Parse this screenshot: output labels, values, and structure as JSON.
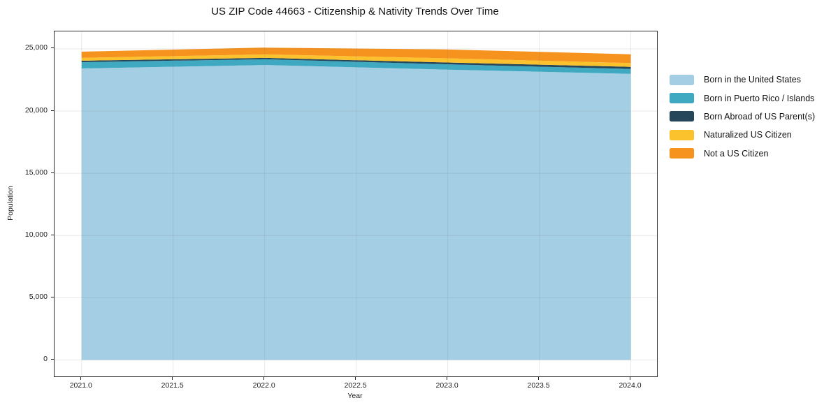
{
  "figure": {
    "title": "US ZIP Code 44663 - Citizenship & Nativity Trends Over Time"
  },
  "chart_data": {
    "type": "area",
    "stacked": true,
    "title": "US ZIP Code 44663 - Citizenship & Nativity Trends Over Time",
    "xlabel": "Year",
    "ylabel": "Population",
    "x": [
      2021,
      2022,
      2023,
      2024
    ],
    "series": [
      {
        "name": "Born in the United States",
        "color": "#a4cee3",
        "values": [
          23425,
          23700,
          23330,
          22990
        ]
      },
      {
        "name": "Born in Puerto Rico / Islands",
        "color": "#3fa9c2",
        "values": [
          505,
          465,
          425,
          395
        ]
      },
      {
        "name": "Born Abroad of US Parent(s)",
        "color": "#26475a",
        "values": [
          115,
          110,
          145,
          170
        ]
      },
      {
        "name": "Naturalized US Citizen",
        "color": "#fcc22d",
        "values": [
          230,
          280,
          340,
          305
        ]
      },
      {
        "name": "Not a US Citizen",
        "color": "#f6931e",
        "values": [
          500,
          545,
          710,
          705
        ]
      }
    ],
    "stacked_totals": [
      24775,
      25100,
      24950,
      24565
    ],
    "xlim": [
      2020.852,
      2024.143
    ],
    "ylim": [
      -1320,
      26400
    ],
    "x_ticks": [
      {
        "value": 2021.0,
        "label": "2021.0"
      },
      {
        "value": 2021.5,
        "label": "2021.5"
      },
      {
        "value": 2022.0,
        "label": "2022.0"
      },
      {
        "value": 2022.5,
        "label": "2022.5"
      },
      {
        "value": 2023.0,
        "label": "2023.0"
      },
      {
        "value": 2023.5,
        "label": "2023.5"
      },
      {
        "value": 2024.0,
        "label": "2024.0"
      }
    ],
    "y_ticks": [
      {
        "value": 0,
        "label": "0"
      },
      {
        "value": 5000,
        "label": "5,000"
      },
      {
        "value": 10000,
        "label": "10,000"
      },
      {
        "value": 15000,
        "label": "15,000"
      },
      {
        "value": 20000,
        "label": "20,000"
      },
      {
        "value": 25000,
        "label": "25,000"
      }
    ],
    "grid": true,
    "grid_color": "rgba(120,120,120,0.16)",
    "legend_position": "right-outside",
    "legend_entries": [
      "Born in the United States",
      "Born in Puerto Rico / Islands",
      "Born Abroad of US Parent(s)",
      "Naturalized US Citizen",
      "Not a US Citizen"
    ]
  }
}
